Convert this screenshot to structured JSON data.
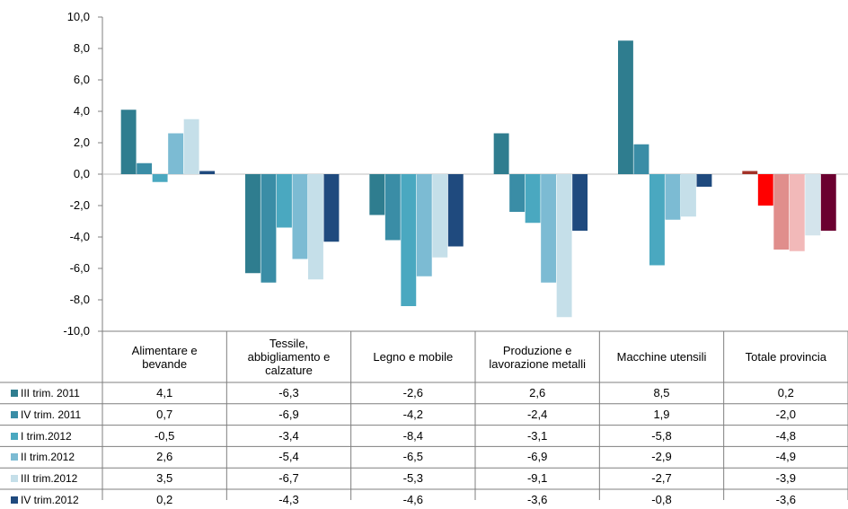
{
  "chart_data": {
    "type": "bar",
    "categories": [
      [
        "Alimentare e",
        "bevande"
      ],
      [
        "Tessile,",
        "abbigliamento e",
        "calzature"
      ],
      [
        "Legno e mobile"
      ],
      [
        "Produzione e",
        "lavorazione metalli"
      ],
      [
        "Macchine utensili"
      ],
      [
        "Totale provincia"
      ]
    ],
    "ylim": [
      -10,
      10
    ],
    "yticks": [
      "10,0",
      "8,0",
      "6,0",
      "4,0",
      "2,0",
      "0,0",
      "-2,0",
      "-4,0",
      "-6,0",
      "-8,0",
      "-10,0"
    ],
    "grid": false,
    "legend": "data-table",
    "series": [
      {
        "name": "III trim. 2011",
        "values": [
          4.1,
          -6.3,
          -2.6,
          2.6,
          8.5,
          0.2
        ],
        "labels": [
          "4,1",
          "-6,3",
          "-2,6",
          "2,6",
          "8,5",
          "0,2"
        ]
      },
      {
        "name": "IV trim. 2011",
        "values": [
          0.7,
          -6.9,
          -4.2,
          -2.4,
          1.9,
          -2.0
        ],
        "labels": [
          "0,7",
          "-6,9",
          "-4,2",
          "-2,4",
          "1,9",
          "-2,0"
        ]
      },
      {
        "name": "I trim.2012",
        "values": [
          -0.5,
          -3.4,
          -8.4,
          -3.1,
          -5.8,
          -4.8
        ],
        "labels": [
          "-0,5",
          "-3,4",
          "-8,4",
          "-3,1",
          "-5,8",
          "-4,8"
        ]
      },
      {
        "name": "II trim.2012",
        "values": [
          2.6,
          -5.4,
          -6.5,
          -6.9,
          -2.9,
          -4.9
        ],
        "labels": [
          "2,6",
          "-5,4",
          "-6,5",
          "-6,9",
          "-2,9",
          "-4,9"
        ]
      },
      {
        "name": "III trim.2012",
        "values": [
          3.5,
          -6.7,
          -5.3,
          -9.1,
          -2.7,
          -3.9
        ],
        "labels": [
          "3,5",
          "-6,7",
          "-5,3",
          "-9,1",
          "-2,7",
          "-3,9"
        ]
      },
      {
        "name": "IV trim.2012",
        "values": [
          0.2,
          -4.3,
          -4.6,
          -3.6,
          -0.8,
          -3.6
        ],
        "labels": [
          "0,2",
          "-4,3",
          "-4,6",
          "-3,6",
          "-0,8",
          "-3,6"
        ]
      }
    ],
    "colors": [
      "#2f7d8f",
      "#3a8da6",
      "#4aa8c0",
      "#7cbbd3",
      "#c5dfe9",
      "#1f4a7e"
    ],
    "highlight_colors": [
      "#a33228",
      "#ff0000",
      "#e08e8c",
      "#f2b9b9",
      "#d4e4ec",
      "#6b0030"
    ]
  }
}
